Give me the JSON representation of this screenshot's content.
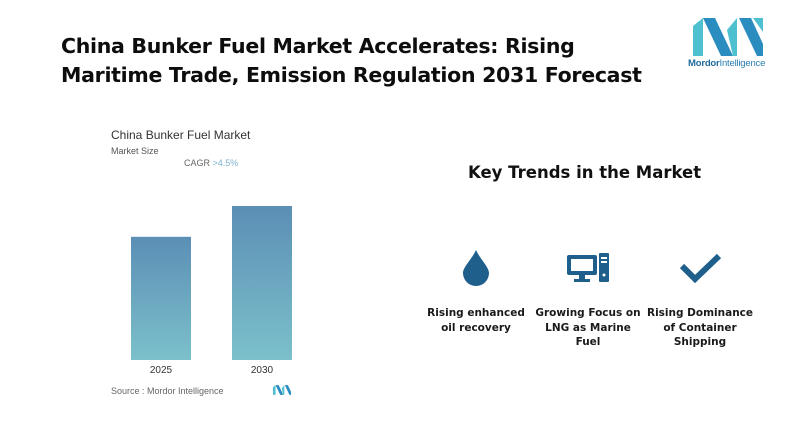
{
  "headline": "China Bunker Fuel Market Accelerates: Rising Maritime Trade, Emission Regulation 2031 Forecast",
  "logo": {
    "brand_bold": "Mordor",
    "brand_rest": "Intelligence",
    "icon": "mordor-intelligence-logo-icon",
    "colors": {
      "dark": "#2a8cbf",
      "light": "#4fc0cf"
    }
  },
  "chart_data": {
    "type": "bar",
    "title": "China Bunker Fuel Market",
    "subtitle": "Market Size",
    "annotation": {
      "label": "CAGR ",
      "value": ">4.5%"
    },
    "categories": [
      "2025",
      "2030"
    ],
    "values": [
      1.0,
      1.25
    ],
    "value_units": "relative (no axis shown)",
    "xlabel": "",
    "ylabel": "",
    "ylim": [
      0,
      1.25
    ],
    "grid": false,
    "legend": "none",
    "colors": {
      "bar_top": "#5b8fb5",
      "bar_bottom": "#7cc0cb"
    },
    "source": "Source :  Mordor Intelligence"
  },
  "trends": {
    "title": "Key Trends in the Market",
    "icon_color": "#1f5f8b",
    "items": [
      {
        "icon": "water-drop-icon",
        "label": "Rising enhanced oil recovery"
      },
      {
        "icon": "desktop-computer-icon",
        "label": "Growing Focus on LNG as Marine Fuel"
      },
      {
        "icon": "checkmark-icon",
        "label": "Rising Dominance of Container Shipping"
      }
    ]
  }
}
